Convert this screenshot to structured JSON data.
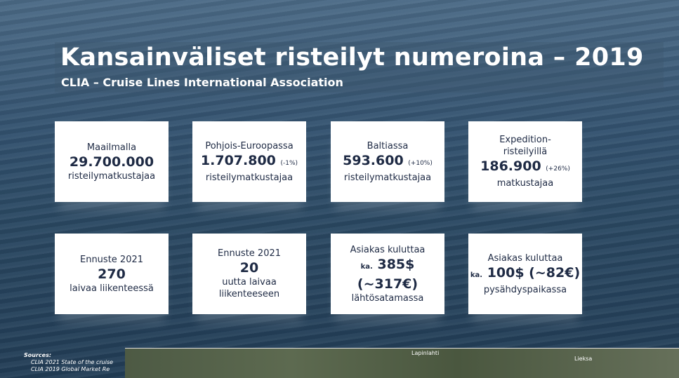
{
  "header": {
    "title": "Kansainväliset risteilyt numeroina – 2019",
    "subtitle": "CLIA – Cruise Lines International Association"
  },
  "cards": [
    {
      "top": [
        "Maailmalla"
      ],
      "value": "29.700.000",
      "bottom": [
        "risteilymatkustajaa"
      ]
    },
    {
      "top": [
        "Pohjois-Euroopassa"
      ],
      "value": "1.707.800",
      "note": "(-1%)",
      "bottom": [
        "risteilymatkustajaa"
      ]
    },
    {
      "top": [
        "Baltiassa"
      ],
      "value": "593.600",
      "note": "(+10%)",
      "bottom": [
        "risteilymatkustajaa"
      ]
    },
    {
      "top": [
        "Expedition-",
        "risteilyillä"
      ],
      "value": "186.900",
      "note": "(+26%)",
      "bottom": [
        "matkustajaa"
      ]
    },
    {
      "top": [
        "Ennuste 2021"
      ],
      "value": "270",
      "bottom": [
        "laivaa liikenteessä"
      ]
    },
    {
      "top": [
        "Ennuste 2021"
      ],
      "value": "20",
      "bottom": [
        "uutta laivaa",
        "liikenteeseen"
      ]
    },
    {
      "top": [
        "Asiakas kuluttaa"
      ],
      "prefix": "ka.",
      "value": "385$ (~317€)",
      "bottom": [
        "lähtösatamassa"
      ]
    },
    {
      "top": [
        "Asiakas kuluttaa"
      ],
      "prefix": "ka.",
      "value": "100$ (~82€)",
      "bottom": [
        "pysähdyspaikassa"
      ]
    }
  ],
  "sources": {
    "heading": "Sources:",
    "items": [
      "CLIA 2021 State of the cruise",
      "CLIA 2019 Global Market Re"
    ]
  },
  "map": {
    "labels": [
      "Lapinlahti",
      "Lieksa"
    ]
  }
}
